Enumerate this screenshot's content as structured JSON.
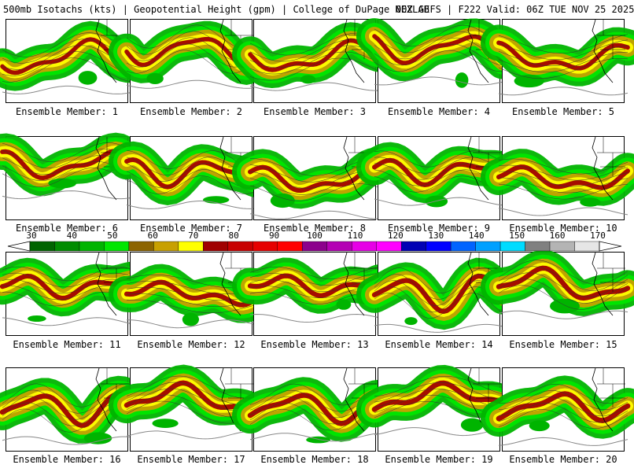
{
  "header": {
    "title": "500mb Isotachs (kts) | Geopotential Height (gpm) | College of DuPage NEXLAB",
    "run_info": "00Z GEFS | F222 Valid: 06Z TUE NOV 25 2025"
  },
  "panels": [
    {
      "label": "Ensemble Member: 1"
    },
    {
      "label": "Ensemble Member: 2"
    },
    {
      "label": "Ensemble Member: 3"
    },
    {
      "label": "Ensemble Member: 4"
    },
    {
      "label": "Ensemble Member: 5"
    },
    {
      "label": "Ensemble Member: 6"
    },
    {
      "label": "Ensemble Member: 7"
    },
    {
      "label": "Ensemble Member: 8"
    },
    {
      "label": "Ensemble Member: 9"
    },
    {
      "label": "Ensemble Member: 10"
    },
    {
      "label": "Ensemble Member: 11"
    },
    {
      "label": "Ensemble Member: 12"
    },
    {
      "label": "Ensemble Member: 13"
    },
    {
      "label": "Ensemble Member: 14"
    },
    {
      "label": "Ensemble Member: 15"
    },
    {
      "label": "Ensemble Member: 16"
    },
    {
      "label": "Ensemble Member: 17"
    },
    {
      "label": "Ensemble Member: 18"
    },
    {
      "label": "Ensemble Member: 19"
    },
    {
      "label": "Ensemble Member: 20"
    }
  ],
  "colorbar": {
    "unit": "kts",
    "ticks": [
      "30",
      "40",
      "50",
      "60",
      "70",
      "80",
      "90",
      "100",
      "110",
      "120",
      "130",
      "140",
      "150",
      "160",
      "170"
    ],
    "colors": [
      "#006400",
      "#008c00",
      "#00b400",
      "#00e600",
      "#8c6400",
      "#c8a000",
      "#ffff00",
      "#a00000",
      "#c80000",
      "#e60000",
      "#ff0000",
      "#8c008c",
      "#b400b4",
      "#e600e6",
      "#ff00ff",
      "#0000b4",
      "#0000ff",
      "#0064ff",
      "#00a0ff",
      "#00dcff",
      "#808080",
      "#b4b4b4",
      "#e6e6e6"
    ]
  }
}
